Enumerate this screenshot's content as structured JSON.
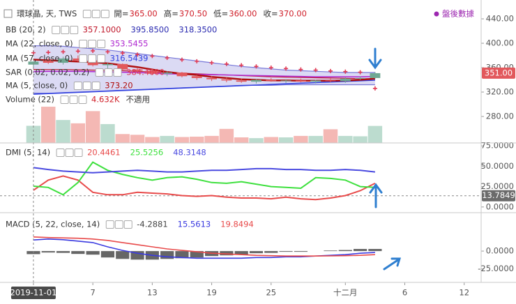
{
  "chart_data": [
    {
      "type": "candlestick",
      "title": "環球晶, 天, TWS",
      "ohlc_readout": [
        {
          "key": "開=",
          "text": "365.00"
        },
        {
          "key": "高=",
          "text": "370.50"
        },
        {
          "key": "低=",
          "text": "360.00"
        },
        {
          "key": "收=",
          "text": "370.00"
        }
      ],
      "after_hours": "盤後數據",
      "x": [
        0,
        1,
        2,
        3,
        4,
        5,
        6,
        7,
        8,
        9,
        10,
        11,
        12,
        13,
        14,
        15,
        16,
        17,
        18,
        19,
        20,
        21,
        22,
        23
      ],
      "xlim": [
        -2.25,
        30.14
      ],
      "xticks": [
        {
          "value": 0,
          "label": "2019-11-01"
        },
        {
          "value": 4,
          "label": "7"
        },
        {
          "value": 8,
          "label": "13"
        },
        {
          "value": 12,
          "label": "19"
        },
        {
          "value": 16,
          "label": "25"
        },
        {
          "value": 21,
          "label": "十二月"
        },
        {
          "value": 25,
          "label": "6"
        },
        {
          "value": 29,
          "label": "12"
        }
      ],
      "ylim": [
        236.6,
        470.9
      ],
      "yticks": [
        {
          "value": 440,
          "label": "440.00"
        },
        {
          "value": 400,
          "label": "400.00"
        },
        {
          "value": 360,
          "label": "360.00"
        },
        {
          "value": 320,
          "label": "320.00"
        },
        {
          "value": 280,
          "label": "280.00"
        }
      ],
      "open": [
        365,
        372,
        368,
        375,
        372,
        364,
        366,
        357,
        355,
        350,
        352,
        346,
        343,
        341,
        339,
        337,
        340,
        338,
        339,
        337,
        339,
        338,
        342,
        343
      ],
      "high": [
        370.5,
        376,
        378,
        380,
        374,
        368,
        367,
        360,
        357,
        354,
        353,
        348,
        346,
        344,
        342,
        341,
        343,
        341,
        342,
        340,
        342,
        344,
        346,
        353
      ],
      "low": [
        360,
        366,
        365,
        370,
        362,
        358,
        355,
        352,
        348,
        346,
        344,
        340,
        338,
        336,
        335,
        334,
        337,
        335,
        336,
        334,
        336,
        335,
        340,
        342
      ],
      "close": [
        370,
        368,
        375,
        372,
        364,
        366,
        357,
        355,
        350,
        352,
        346,
        343,
        341,
        339,
        337,
        340,
        338,
        339,
        337,
        339,
        338,
        342,
        343,
        351
      ],
      "up_color": "#6fa893",
      "down_color": "#e2585c",
      "last_price_label": "351.00",
      "overlays": [
        {
          "name": "BB (20, 2)",
          "kind": "band",
          "fill": "#cccbf0",
          "lines": [
            {
              "color": "#c0182b",
              "readout": "357.1000",
              "values": [
                357.1,
                357,
                357,
                356.5,
                356,
                355.5,
                355,
                354,
                353,
                352,
                351,
                350,
                349,
                348,
                347,
                346,
                345,
                344.5,
                344,
                343.5,
                343,
                342.5,
                342,
                342
              ]
            },
            {
              "color": "#2a2ab0",
              "readout": "395.8500",
              "values": [
                395.85,
                396,
                395,
                393,
                391,
                389,
                386,
                383,
                380,
                377,
                374,
                371,
                368,
                365,
                362,
                360,
                358,
                356,
                355,
                354,
                353,
                352,
                352,
                352
              ]
            },
            {
              "color": "#2a2ab0",
              "readout": "318.3500",
              "values": [
                318.35,
                318,
                319,
                320,
                321,
                322,
                323,
                324,
                325,
                326,
                327,
                328,
                329,
                330,
                331,
                331,
                331,
                332,
                332,
                332,
                332,
                332,
                332,
                332
              ]
            }
          ]
        },
        {
          "name": "MA (22, close, 0)",
          "kind": "line",
          "color": "#b02ad0",
          "readout": "353.5455",
          "values": [
            353.5455,
            354,
            354,
            354,
            353.5,
            353,
            352.5,
            352,
            351,
            350,
            349.5,
            349,
            348.5,
            348,
            347.5,
            347,
            346.5,
            346,
            345.5,
            345,
            345,
            345,
            345,
            345.5
          ]
        },
        {
          "name": "MA (57, close, 0)",
          "kind": "line",
          "color": "#3040e0",
          "readout": "316.5439",
          "values": [
            316.5439,
            317.5,
            318.5,
            319.5,
            320.5,
            321.5,
            322.5,
            323.5,
            324.5,
            325.5,
            326.5,
            327.5,
            328.5,
            329.5,
            330.5,
            331.5,
            332.5,
            333.5,
            334.5,
            335.5,
            336.5,
            337.5,
            338.5,
            339.5
          ]
        },
        {
          "name": "SAR (0.02, 0.02, 0.2)",
          "kind": "cross",
          "color": "#e03a55",
          "readout": "384.4600",
          "values": [
            384.46,
            385,
            386,
            387,
            387.5,
            386,
            384,
            381.5,
            379,
            376,
            373,
            370.5,
            368,
            366,
            364,
            362,
            360,
            358.5,
            357,
            356,
            354.5,
            353.5,
            352.5,
            326
          ]
        },
        {
          "name": "MA (5, close, 0)",
          "kind": "line",
          "color": "#b01010",
          "readout": "373.20",
          "values": [
            373.2,
            372,
            371,
            370,
            369,
            367,
            364,
            361,
            357,
            353,
            350,
            348,
            345,
            343,
            341,
            340,
            339,
            339,
            338.5,
            338.5,
            338.5,
            339,
            340,
            342
          ]
        }
      ],
      "volume": {
        "name": "Volume (22)",
        "readout": "4.632K",
        "readout_na": "不適用",
        "up_color": "#bcdccf",
        "down_color": "#f4b8b4",
        "values": [
          4.632,
          9.8,
          6.2,
          5.3,
          8.6,
          5.1,
          2.4,
          2.2,
          1.6,
          1.9,
          1.6,
          1.7,
          1.9,
          3.8,
          1.5,
          1.3,
          1.6,
          1.5,
          1.9,
          1.9,
          3.7,
          1.9,
          1.8,
          4.6
        ]
      }
    },
    {
      "type": "line",
      "title": "DMI (5, 14)",
      "ylim": [
        -7,
        78.6
      ],
      "yticks": [
        {
          "value": 75,
          "label": "75.0000"
        },
        {
          "value": 50,
          "label": "50.0000"
        },
        {
          "value": 25,
          "label": "25.0000"
        },
        {
          "value": 0,
          "label": "0.0000"
        }
      ],
      "crosshair_value": 13.7849,
      "crosshair_label": "13.7849",
      "series": [
        {
          "color": "#e84a4a",
          "readout": "20.4461",
          "values": [
            20.4461,
            33,
            38,
            33,
            18,
            15,
            15,
            18,
            17,
            16,
            14,
            13,
            14,
            12,
            11,
            11,
            10,
            12,
            10,
            9,
            11,
            14,
            20,
            29
          ]
        },
        {
          "color": "#3ee03e",
          "readout": "25.5256",
          "values": [
            25.5256,
            24,
            15,
            30,
            55,
            45,
            40,
            36,
            33,
            36,
            37,
            34,
            30,
            29,
            31,
            28,
            25,
            24,
            23,
            36,
            35,
            33,
            25,
            24
          ]
        },
        {
          "color": "#4a4ae0",
          "readout": "48.3148",
          "values": [
            48.3148,
            46,
            44,
            43,
            42,
            43,
            44,
            45,
            44,
            43,
            43,
            44,
            45,
            45,
            46,
            47,
            47,
            46,
            46,
            45,
            45,
            46,
            45,
            43
          ]
        }
      ]
    },
    {
      "type": "macd",
      "title": "MACD (5, 22, close, 14)",
      "ylim": [
        -44,
        54
      ],
      "yticks": [
        {
          "value": 0,
          "label": "0.0000"
        },
        {
          "value": -25,
          "label": "-25.0000"
        }
      ],
      "histogram": {
        "color": "#666666",
        "readout": "-4.2881",
        "values": [
          -4.2881,
          -2,
          -2.5,
          -4,
          -5,
          -9,
          -11,
          -12,
          -12,
          -11,
          -10,
          -9,
          -7,
          -6,
          -5,
          -3,
          -2.5,
          -1,
          -1,
          0,
          0.8,
          1.5,
          3,
          3
        ]
      },
      "series": [
        {
          "color": "#3a3ae0",
          "readout": "15.5613",
          "values": [
            15.5613,
            17,
            16,
            14,
            12,
            6,
            1,
            -3,
            -6,
            -8,
            -9,
            -10,
            -10,
            -10,
            -10,
            -9,
            -9,
            -8,
            -8,
            -7,
            -6,
            -5,
            -3,
            -2
          ]
        },
        {
          "color": "#e84a4a",
          "readout": "19.8494",
          "values": [
            19.8494,
            19,
            18.5,
            18,
            17,
            15,
            12,
            9,
            6,
            3,
            1,
            -1,
            -3,
            -4,
            -5,
            -6,
            -6.5,
            -7,
            -7,
            -7,
            -6.8,
            -6.5,
            -6,
            -5
          ]
        }
      ]
    }
  ]
}
